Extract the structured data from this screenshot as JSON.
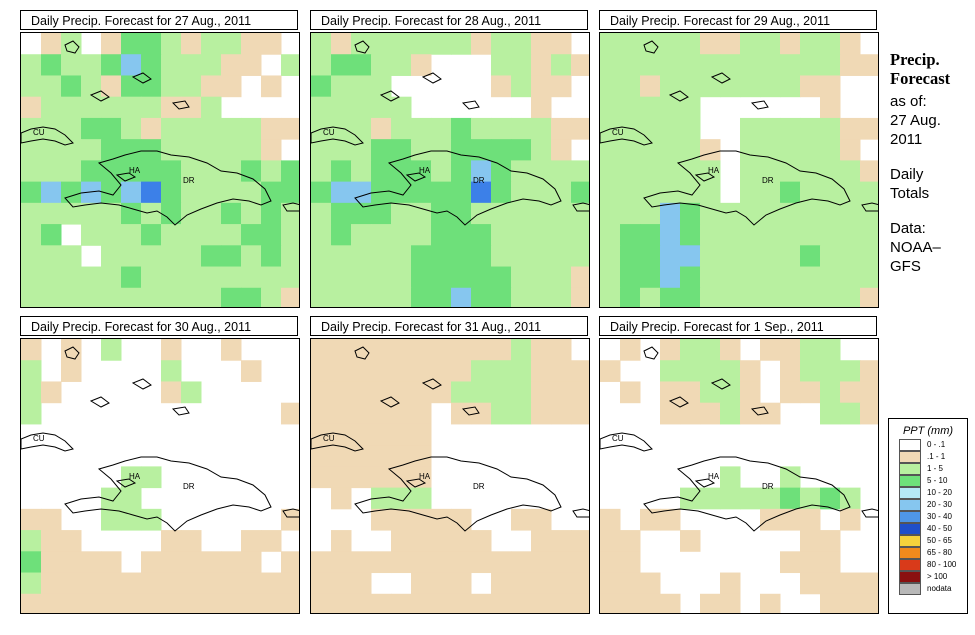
{
  "panels": [
    {
      "title": "Daily Precip. Forecast for  27 Aug., 2011",
      "cells": [
        [
          0,
          1,
          2,
          0,
          1,
          3,
          3,
          2,
          1,
          2,
          2,
          1,
          1,
          0
        ],
        [
          2,
          3,
          2,
          2,
          3,
          4,
          3,
          2,
          2,
          2,
          1,
          1,
          0,
          2
        ],
        [
          2,
          2,
          3,
          2,
          1,
          3,
          3,
          2,
          2,
          1,
          1,
          0,
          1,
          0
        ],
        [
          1,
          2,
          2,
          2,
          2,
          2,
          2,
          1,
          1,
          2,
          0,
          0,
          0,
          0
        ],
        [
          2,
          2,
          2,
          3,
          3,
          2,
          1,
          2,
          2,
          2,
          2,
          2,
          1,
          1
        ],
        [
          2,
          2,
          2,
          2,
          3,
          3,
          3,
          2,
          2,
          2,
          2,
          2,
          1,
          0
        ],
        [
          2,
          2,
          2,
          3,
          3,
          3,
          3,
          3,
          2,
          2,
          2,
          3,
          2,
          3
        ],
        [
          3,
          4,
          3,
          4,
          3,
          4,
          5,
          3,
          2,
          2,
          2,
          2,
          3,
          3
        ],
        [
          2,
          2,
          2,
          2,
          2,
          3,
          2,
          3,
          2,
          2,
          3,
          2,
          3,
          2
        ],
        [
          2,
          3,
          0,
          2,
          2,
          2,
          3,
          2,
          2,
          2,
          2,
          3,
          3,
          2
        ],
        [
          2,
          2,
          2,
          0,
          2,
          2,
          2,
          2,
          2,
          3,
          3,
          2,
          3,
          2
        ],
        [
          2,
          2,
          2,
          2,
          2,
          3,
          2,
          2,
          2,
          2,
          2,
          2,
          2,
          2
        ],
        [
          2,
          2,
          2,
          2,
          2,
          2,
          2,
          2,
          2,
          2,
          3,
          3,
          2,
          1
        ]
      ]
    },
    {
      "title": "Daily Precip. Forecast for  28 Aug., 2011",
      "cells": [
        [
          2,
          1,
          2,
          2,
          2,
          2,
          2,
          2,
          1,
          2,
          2,
          1,
          1,
          0
        ],
        [
          2,
          3,
          3,
          2,
          2,
          1,
          0,
          0,
          0,
          2,
          2,
          1,
          2,
          1
        ],
        [
          3,
          2,
          2,
          2,
          0,
          0,
          0,
          0,
          0,
          1,
          2,
          1,
          1,
          0
        ],
        [
          2,
          2,
          2,
          2,
          2,
          0,
          0,
          0,
          0,
          0,
          0,
          1,
          0,
          0
        ],
        [
          2,
          2,
          2,
          1,
          2,
          2,
          2,
          3,
          2,
          2,
          2,
          2,
          1,
          1
        ],
        [
          2,
          2,
          2,
          3,
          3,
          2,
          2,
          3,
          3,
          3,
          3,
          2,
          1,
          0
        ],
        [
          2,
          3,
          2,
          3,
          3,
          3,
          2,
          3,
          4,
          3,
          2,
          2,
          2,
          2
        ],
        [
          3,
          4,
          4,
          3,
          3,
          3,
          3,
          3,
          5,
          3,
          2,
          2,
          2,
          3
        ],
        [
          2,
          3,
          3,
          3,
          2,
          2,
          3,
          3,
          2,
          2,
          2,
          2,
          2,
          2
        ],
        [
          2,
          3,
          2,
          2,
          2,
          2,
          3,
          3,
          3,
          2,
          2,
          2,
          2,
          2
        ],
        [
          2,
          2,
          2,
          2,
          2,
          3,
          3,
          3,
          3,
          2,
          2,
          2,
          2,
          2
        ],
        [
          2,
          2,
          2,
          2,
          2,
          3,
          3,
          3,
          3,
          3,
          2,
          2,
          2,
          1
        ],
        [
          2,
          2,
          2,
          2,
          2,
          3,
          3,
          4,
          3,
          3,
          2,
          2,
          2,
          1
        ]
      ]
    },
    {
      "title": "Daily Precip. Forecast for  29 Aug., 2011",
      "cells": [
        [
          2,
          2,
          2,
          2,
          2,
          1,
          1,
          2,
          2,
          1,
          2,
          2,
          1,
          0
        ],
        [
          2,
          2,
          2,
          2,
          2,
          2,
          2,
          2,
          2,
          2,
          2,
          2,
          1,
          1
        ],
        [
          2,
          2,
          1,
          2,
          2,
          2,
          2,
          2,
          2,
          2,
          1,
          1,
          0,
          0
        ],
        [
          2,
          2,
          2,
          2,
          2,
          0,
          0,
          0,
          0,
          0,
          0,
          1,
          0,
          0
        ],
        [
          2,
          2,
          2,
          2,
          2,
          0,
          0,
          2,
          2,
          2,
          2,
          2,
          1,
          1
        ],
        [
          2,
          2,
          2,
          2,
          2,
          1,
          0,
          2,
          2,
          2,
          2,
          2,
          1,
          0
        ],
        [
          2,
          2,
          2,
          2,
          2,
          2,
          0,
          2,
          2,
          2,
          2,
          2,
          2,
          1
        ],
        [
          2,
          2,
          2,
          2,
          2,
          2,
          0,
          2,
          2,
          3,
          2,
          2,
          2,
          2
        ],
        [
          2,
          2,
          2,
          4,
          3,
          2,
          2,
          2,
          2,
          2,
          2,
          2,
          2,
          2
        ],
        [
          2,
          3,
          3,
          4,
          3,
          2,
          2,
          2,
          2,
          2,
          2,
          2,
          2,
          2
        ],
        [
          2,
          3,
          3,
          4,
          4,
          2,
          2,
          2,
          2,
          2,
          3,
          2,
          2,
          2
        ],
        [
          2,
          3,
          3,
          4,
          3,
          2,
          2,
          2,
          2,
          2,
          2,
          2,
          2,
          2
        ],
        [
          2,
          3,
          2,
          3,
          3,
          2,
          2,
          2,
          2,
          2,
          2,
          2,
          2,
          1
        ]
      ]
    },
    {
      "title": "Daily Precip. Forecast for  30 Aug., 2011",
      "cells": [
        [
          1,
          0,
          1,
          0,
          2,
          0,
          0,
          1,
          0,
          0,
          1,
          0,
          0,
          0
        ],
        [
          2,
          0,
          1,
          0,
          0,
          0,
          0,
          2,
          0,
          0,
          0,
          1,
          0,
          0
        ],
        [
          2,
          1,
          0,
          0,
          0,
          0,
          0,
          1,
          2,
          0,
          0,
          0,
          0,
          0
        ],
        [
          2,
          0,
          0,
          0,
          0,
          0,
          0,
          0,
          0,
          0,
          0,
          0,
          0,
          1
        ],
        [
          0,
          0,
          0,
          0,
          0,
          0,
          0,
          0,
          0,
          0,
          0,
          0,
          0,
          0
        ],
        [
          0,
          0,
          0,
          0,
          0,
          0,
          0,
          0,
          0,
          0,
          0,
          0,
          0,
          0
        ],
        [
          0,
          0,
          0,
          0,
          0,
          2,
          2,
          0,
          0,
          0,
          0,
          0,
          0,
          0
        ],
        [
          0,
          0,
          0,
          0,
          2,
          2,
          0,
          0,
          0,
          0,
          0,
          0,
          0,
          0
        ],
        [
          1,
          1,
          0,
          0,
          2,
          2,
          2,
          0,
          0,
          0,
          0,
          0,
          0,
          1
        ],
        [
          2,
          1,
          1,
          0,
          0,
          0,
          0,
          1,
          1,
          0,
          0,
          1,
          1,
          0
        ],
        [
          3,
          1,
          1,
          1,
          1,
          0,
          1,
          1,
          1,
          1,
          1,
          1,
          0,
          1
        ],
        [
          2,
          1,
          1,
          1,
          1,
          1,
          1,
          1,
          1,
          1,
          1,
          1,
          1,
          1
        ],
        [
          1,
          1,
          1,
          1,
          1,
          1,
          1,
          1,
          1,
          1,
          1,
          1,
          1,
          1
        ]
      ]
    },
    {
      "title": "Daily Precip. Forecast for  31 Aug., 2011",
      "cells": [
        [
          1,
          1,
          1,
          1,
          1,
          1,
          1,
          1,
          1,
          1,
          2,
          1,
          1,
          0
        ],
        [
          1,
          1,
          1,
          1,
          1,
          1,
          1,
          1,
          2,
          2,
          2,
          1,
          1,
          1
        ],
        [
          1,
          1,
          1,
          1,
          1,
          1,
          1,
          2,
          2,
          2,
          2,
          1,
          1,
          1
        ],
        [
          1,
          1,
          1,
          1,
          1,
          1,
          0,
          1,
          1,
          2,
          2,
          1,
          1,
          1
        ],
        [
          1,
          1,
          1,
          1,
          1,
          1,
          0,
          0,
          0,
          0,
          0,
          0,
          0,
          0
        ],
        [
          1,
          1,
          1,
          1,
          1,
          1,
          0,
          0,
          0,
          0,
          0,
          0,
          0,
          0
        ],
        [
          1,
          1,
          1,
          1,
          1,
          1,
          0,
          0,
          0,
          0,
          0,
          0,
          0,
          0
        ],
        [
          0,
          1,
          0,
          2,
          2,
          2,
          0,
          0,
          0,
          0,
          0,
          0,
          0,
          0
        ],
        [
          0,
          0,
          0,
          1,
          1,
          1,
          1,
          1,
          0,
          0,
          1,
          1,
          0,
          0
        ],
        [
          0,
          1,
          0,
          0,
          1,
          1,
          1,
          1,
          1,
          0,
          0,
          1,
          1,
          1
        ],
        [
          1,
          1,
          1,
          1,
          1,
          1,
          1,
          1,
          1,
          1,
          1,
          1,
          1,
          1
        ],
        [
          1,
          1,
          1,
          0,
          0,
          1,
          1,
          1,
          0,
          1,
          1,
          1,
          1,
          1
        ],
        [
          1,
          1,
          1,
          1,
          1,
          1,
          1,
          1,
          1,
          1,
          1,
          1,
          1,
          1
        ]
      ]
    },
    {
      "title": "Daily Precip. Forecast for  1 Sep., 2011",
      "cells": [
        [
          0,
          1,
          0,
          1,
          2,
          2,
          1,
          0,
          1,
          1,
          2,
          2,
          0,
          0
        ],
        [
          1,
          0,
          0,
          2,
          2,
          2,
          2,
          1,
          0,
          1,
          2,
          2,
          2,
          1
        ],
        [
          0,
          1,
          0,
          1,
          1,
          2,
          2,
          1,
          0,
          1,
          1,
          2,
          1,
          1
        ],
        [
          0,
          0,
          0,
          1,
          1,
          1,
          2,
          1,
          1,
          0,
          0,
          2,
          2,
          1
        ],
        [
          0,
          0,
          0,
          0,
          0,
          0,
          0,
          0,
          0,
          0,
          0,
          0,
          0,
          0
        ],
        [
          0,
          0,
          0,
          0,
          0,
          0,
          0,
          0,
          0,
          0,
          0,
          0,
          0,
          0
        ],
        [
          0,
          0,
          0,
          0,
          0,
          0,
          2,
          0,
          0,
          2,
          0,
          0,
          0,
          0
        ],
        [
          0,
          0,
          0,
          0,
          2,
          2,
          2,
          2,
          2,
          3,
          2,
          3,
          2,
          0
        ],
        [
          1,
          0,
          1,
          1,
          0,
          0,
          0,
          0,
          1,
          1,
          1,
          0,
          1,
          0
        ],
        [
          1,
          1,
          0,
          0,
          1,
          0,
          0,
          0,
          0,
          0,
          1,
          1,
          0,
          0
        ],
        [
          1,
          1,
          0,
          0,
          0,
          0,
          0,
          0,
          0,
          1,
          1,
          1,
          0,
          0
        ],
        [
          1,
          1,
          1,
          0,
          0,
          0,
          1,
          0,
          0,
          0,
          1,
          1,
          1,
          1
        ],
        [
          1,
          1,
          1,
          1,
          0,
          1,
          1,
          0,
          1,
          0,
          0,
          1,
          1,
          1
        ]
      ]
    }
  ],
  "map_labels": {
    "cu": "CU",
    "ha": "HA",
    "dr": "DR"
  },
  "side": {
    "title1": "Precip.",
    "title2": "Forecast",
    "l1": "as of:",
    "l2": "27 Aug.",
    "l3": "2011",
    "l4": "Daily",
    "l5": "Totals",
    "l6": "Data:",
    "l7": "NOAA–",
    "l8": "GFS"
  },
  "legend": {
    "title": "PPT (mm)",
    "items": [
      {
        "label": "0 - .1",
        "color": "#ffffff"
      },
      {
        "label": ".1 - 1",
        "color": "#f0d9b5"
      },
      {
        "label": "1 - 5",
        "color": "#b8f0a0"
      },
      {
        "label": "5 - 10",
        "color": "#6ee07a"
      },
      {
        "label": "10 - 20",
        "color": "#b5e8f5"
      },
      {
        "label": "20 - 30",
        "color": "#86c6ef"
      },
      {
        "label": "30 - 40",
        "color": "#4f96e6"
      },
      {
        "label": "40 - 50",
        "color": "#1f4fc9"
      },
      {
        "label": "50 - 65",
        "color": "#f5d23c"
      },
      {
        "label": "65 - 80",
        "color": "#f08a1c"
      },
      {
        "label": "80 - 100",
        "color": "#d93a1a"
      },
      {
        "label": "> 100",
        "color": "#8a1010"
      },
      {
        "label": "nodata",
        "color": "#b8b8b8"
      }
    ]
  },
  "colors": [
    "#ffffff",
    "#f0d9b5",
    "#b8f0a0",
    "#6ee07a",
    "#86c6ef",
    "#3c80e8"
  ]
}
